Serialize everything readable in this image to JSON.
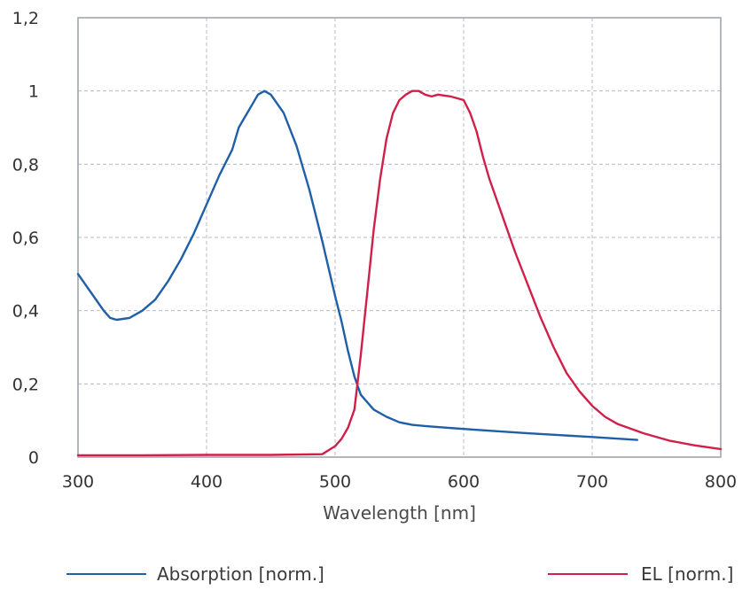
{
  "chart_data": {
    "type": "line",
    "xlabel": "Wavelength [nm]",
    "ylabel": "",
    "xlim": [
      300,
      800
    ],
    "ylim": [
      0,
      1.2
    ],
    "x_ticks": [
      "300",
      "400",
      "500",
      "600",
      "700",
      "800"
    ],
    "y_ticks": [
      "0",
      "0,2",
      "0,4",
      "0,6",
      "0,8",
      "1",
      "1,2"
    ],
    "grid": true,
    "legend_position": "bottom",
    "series": [
      {
        "name": "Absorption [norm.]",
        "color": "#1f5fa8",
        "points": [
          [
            300,
            0.5
          ],
          [
            310,
            0.45
          ],
          [
            320,
            0.4
          ],
          [
            325,
            0.38
          ],
          [
            330,
            0.375
          ],
          [
            340,
            0.38
          ],
          [
            350,
            0.4
          ],
          [
            360,
            0.43
          ],
          [
            370,
            0.48
          ],
          [
            380,
            0.54
          ],
          [
            390,
            0.61
          ],
          [
            400,
            0.69
          ],
          [
            410,
            0.77
          ],
          [
            420,
            0.84
          ],
          [
            425,
            0.9
          ],
          [
            430,
            0.93
          ],
          [
            435,
            0.96
          ],
          [
            440,
            0.99
          ],
          [
            445,
            1.0
          ],
          [
            450,
            0.99
          ],
          [
            460,
            0.94
          ],
          [
            470,
            0.85
          ],
          [
            480,
            0.73
          ],
          [
            490,
            0.59
          ],
          [
            500,
            0.44
          ],
          [
            505,
            0.37
          ],
          [
            510,
            0.29
          ],
          [
            515,
            0.22
          ],
          [
            520,
            0.17
          ],
          [
            530,
            0.13
          ],
          [
            540,
            0.11
          ],
          [
            550,
            0.095
          ],
          [
            560,
            0.088
          ],
          [
            570,
            0.085
          ],
          [
            580,
            0.082
          ],
          [
            600,
            0.077
          ],
          [
            620,
            0.072
          ],
          [
            650,
            0.065
          ],
          [
            700,
            0.055
          ],
          [
            735,
            0.047
          ]
        ]
      },
      {
        "name": "EL [norm.]",
        "color": "#d0204a",
        "points": [
          [
            300,
            0.005
          ],
          [
            350,
            0.005
          ],
          [
            400,
            0.006
          ],
          [
            450,
            0.006
          ],
          [
            490,
            0.008
          ],
          [
            500,
            0.03
          ],
          [
            505,
            0.05
          ],
          [
            510,
            0.08
          ],
          [
            515,
            0.13
          ],
          [
            520,
            0.28
          ],
          [
            525,
            0.45
          ],
          [
            530,
            0.62
          ],
          [
            535,
            0.76
          ],
          [
            540,
            0.87
          ],
          [
            545,
            0.94
          ],
          [
            550,
            0.975
          ],
          [
            555,
            0.99
          ],
          [
            560,
            1.0
          ],
          [
            565,
            1.0
          ],
          [
            570,
            0.99
          ],
          [
            575,
            0.985
          ],
          [
            580,
            0.99
          ],
          [
            590,
            0.985
          ],
          [
            600,
            0.975
          ],
          [
            605,
            0.94
          ],
          [
            610,
            0.89
          ],
          [
            615,
            0.82
          ],
          [
            620,
            0.76
          ],
          [
            630,
            0.66
          ],
          [
            640,
            0.56
          ],
          [
            650,
            0.47
          ],
          [
            660,
            0.38
          ],
          [
            670,
            0.3
          ],
          [
            680,
            0.23
          ],
          [
            690,
            0.18
          ],
          [
            700,
            0.14
          ],
          [
            710,
            0.11
          ],
          [
            720,
            0.09
          ],
          [
            740,
            0.065
          ],
          [
            760,
            0.045
          ],
          [
            780,
            0.032
          ],
          [
            800,
            0.022
          ]
        ]
      }
    ]
  }
}
